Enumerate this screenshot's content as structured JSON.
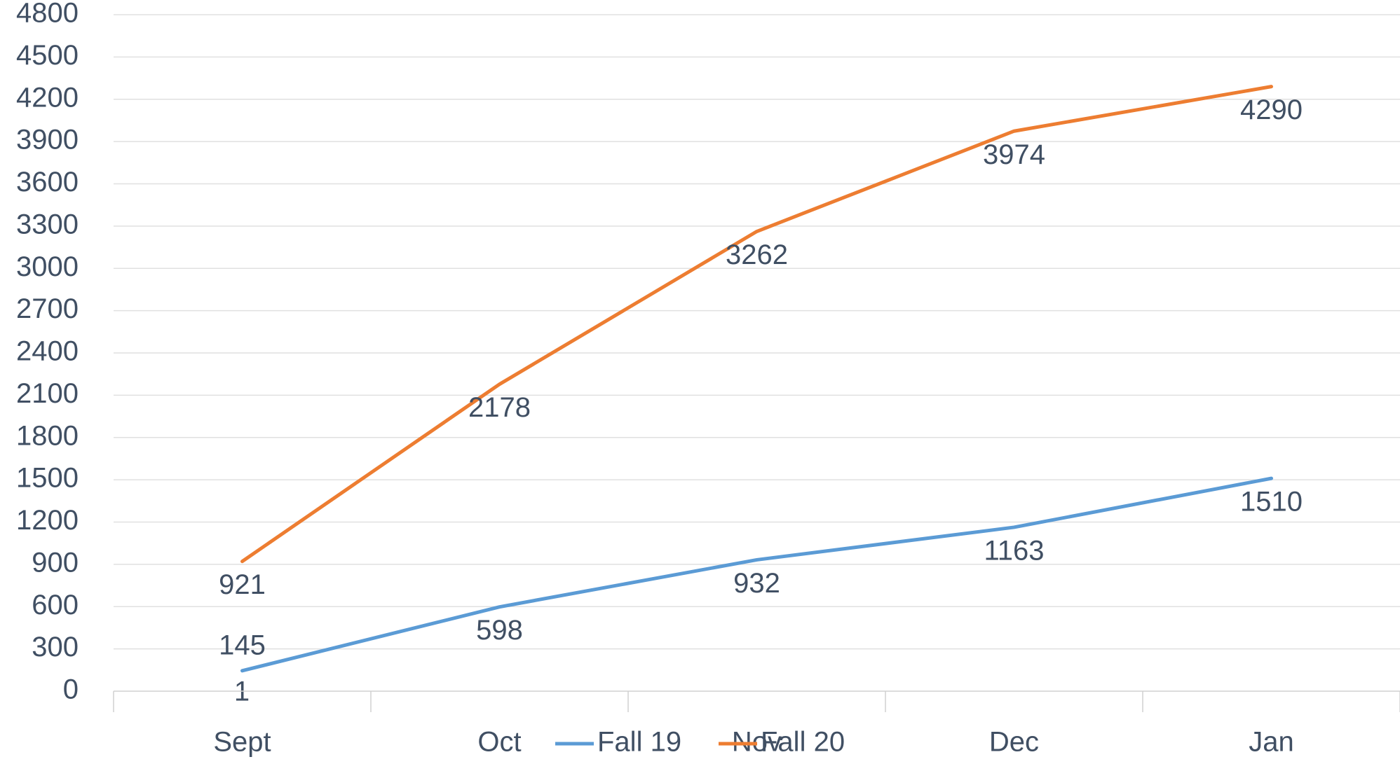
{
  "chart_data": {
    "type": "line",
    "categories": [
      "Sept",
      "Oct",
      "Nov",
      "Dec",
      "Jan"
    ],
    "series": [
      {
        "name": "Fall 19",
        "color": "#5b9bd5",
        "values": [
          145,
          598,
          932,
          1163,
          1510
        ]
      },
      {
        "name": "Fall 20",
        "color": "#ed7d31",
        "values": [
          921,
          2178,
          3262,
          3974,
          4290
        ]
      }
    ],
    "annotation": "1",
    "ylim": [
      0,
      4800
    ],
    "yticks": [
      0,
      300,
      600,
      900,
      1200,
      1500,
      1800,
      2100,
      2400,
      2700,
      3000,
      3300,
      3600,
      3900,
      4200,
      4500,
      4800
    ],
    "grid": true,
    "legend": "bottom"
  }
}
